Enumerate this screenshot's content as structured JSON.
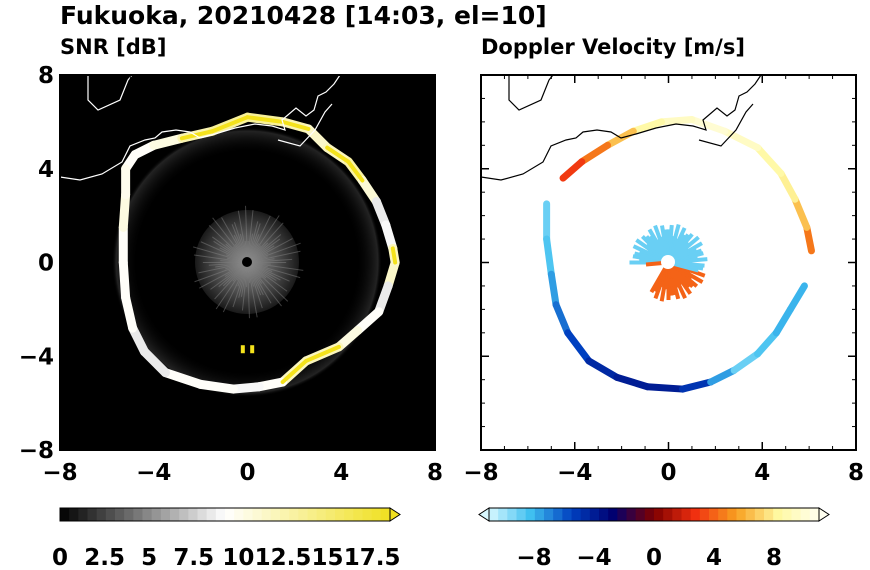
{
  "figure": {
    "title": "Fukuoka, 20210428 [14:03, el=10]"
  },
  "chart_data": [
    {
      "type": "heatmap",
      "panel_title": "SNR [dB]",
      "xlim": [
        -8,
        8
      ],
      "ylim": [
        -8,
        8
      ],
      "x_ticks": [
        "−8",
        "−4",
        "0",
        "4",
        "8"
      ],
      "y_ticks": [
        "8",
        "4",
        "0",
        "−4",
        "−8"
      ],
      "background": "#000000",
      "radar_site": [
        0,
        0
      ],
      "colorbar": {
        "min": 0,
        "max": 18.5,
        "tick_labels": [
          "0",
          "2.5",
          "5",
          "7.5",
          "10",
          "12.5",
          "15",
          "17.5"
        ],
        "tick_values": [
          0,
          2.5,
          5,
          7.5,
          10,
          12.5,
          15,
          17.5
        ],
        "colors": [
          "#000000",
          "#ffffff",
          "#f0e020"
        ],
        "extend": "max"
      },
      "ring_points": [
        {
          "x": -5.2,
          "y": 4.0,
          "v": 13
        },
        {
          "x": -4.8,
          "y": 4.6,
          "v": 14
        },
        {
          "x": -4.0,
          "y": 5.0,
          "v": 13
        },
        {
          "x": -2.8,
          "y": 5.3,
          "v": 16
        },
        {
          "x": -1.5,
          "y": 5.6,
          "v": 17
        },
        {
          "x": 0,
          "y": 6.2,
          "v": 18
        },
        {
          "x": 1.5,
          "y": 6.0,
          "v": 17
        },
        {
          "x": 2.6,
          "y": 5.7,
          "v": 16
        },
        {
          "x": 3.4,
          "y": 4.9,
          "v": 15
        },
        {
          "x": 4.3,
          "y": 4.3,
          "v": 17
        },
        {
          "x": 4.9,
          "y": 3.5,
          "v": 17
        },
        {
          "x": 5.5,
          "y": 2.6,
          "v": 13
        },
        {
          "x": 5.9,
          "y": 1.6,
          "v": 12
        },
        {
          "x": 6.2,
          "y": 0.6,
          "v": 14
        },
        {
          "x": 6.3,
          "y": 0.0,
          "v": 18
        },
        {
          "x": 6.0,
          "y": -1.0,
          "v": 13
        },
        {
          "x": 5.6,
          "y": -2.1,
          "v": 12
        },
        {
          "x": 4.7,
          "y": -2.9,
          "v": 15
        },
        {
          "x": 3.9,
          "y": -3.6,
          "v": 14
        },
        {
          "x": 2.5,
          "y": -4.2,
          "v": 18
        },
        {
          "x": 1.5,
          "y": -5.1,
          "v": 14
        },
        {
          "x": 0.5,
          "y": -5.3,
          "v": 13
        },
        {
          "x": -0.6,
          "y": -5.4,
          "v": 13
        },
        {
          "x": -2.0,
          "y": -5.2,
          "v": 14
        },
        {
          "x": -3.5,
          "y": -4.7,
          "v": 13
        },
        {
          "x": -4.4,
          "y": -3.8,
          "v": 12
        },
        {
          "x": -4.9,
          "y": -2.8,
          "v": 13
        },
        {
          "x": -5.2,
          "y": -1.5,
          "v": 14
        },
        {
          "x": -5.3,
          "y": 0.0,
          "v": 13
        },
        {
          "x": -5.3,
          "y": 1.5,
          "v": 14
        },
        {
          "x": -5.2,
          "y": 2.9,
          "v": 15
        }
      ],
      "center_echo_radius": 2.2,
      "small_echoes": [
        {
          "x": -0.2,
          "y": -3.7,
          "v": 17
        },
        {
          "x": 0.2,
          "y": -3.7,
          "v": 17
        }
      ]
    },
    {
      "type": "heatmap",
      "panel_title": "Doppler Velocity [m/s]",
      "xlim": [
        -8,
        8
      ],
      "ylim": [
        -8,
        8
      ],
      "x_ticks": [
        "−8",
        "−4",
        "0",
        "4",
        "8"
      ],
      "y_ticks": [
        "8",
        "4",
        "0",
        "−4",
        "−8"
      ],
      "background": "#ffffff",
      "colorbar": {
        "min": -11,
        "max": 11,
        "tick_labels": [
          "−8",
          "−4",
          "0",
          "4",
          "8"
        ],
        "tick_values": [
          -8,
          -4,
          0,
          4,
          8
        ],
        "colors": [
          "#d8f8ff",
          "#40c0f0",
          "#0040c0",
          "#000070",
          "#800000",
          "#f03010",
          "#f8a020",
          "#fff8a0",
          "#fffff0"
        ],
        "extend": "both"
      },
      "ring_points": [
        {
          "x": -5.2,
          "y": 2.5,
          "v": -9
        },
        {
          "x": -5.2,
          "y": 1.0,
          "v": -9
        },
        {
          "x": -5.0,
          "y": -0.5,
          "v": -8
        },
        {
          "x": -4.8,
          "y": -1.8,
          "v": -7
        },
        {
          "x": -4.3,
          "y": -3.0,
          "v": -6
        },
        {
          "x": -3.4,
          "y": -4.2,
          "v": -5
        },
        {
          "x": -2.2,
          "y": -4.9,
          "v": -4
        },
        {
          "x": -0.9,
          "y": -5.3,
          "v": -4
        },
        {
          "x": 0.6,
          "y": -5.4,
          "v": -4
        },
        {
          "x": 1.8,
          "y": -5.1,
          "v": -6
        },
        {
          "x": 2.8,
          "y": -4.6,
          "v": -9
        },
        {
          "x": 3.8,
          "y": -3.9,
          "v": -9
        },
        {
          "x": 4.6,
          "y": -3.0,
          "v": -8
        },
        {
          "x": 5.2,
          "y": -2.0,
          "v": -8
        },
        {
          "x": 5.8,
          "y": -1.0,
          "v": -8
        },
        {
          "x": 6.1,
          "y": 0.5,
          "v": 4
        },
        {
          "x": 5.9,
          "y": 1.5,
          "v": 5
        },
        {
          "x": 5.4,
          "y": 2.7,
          "v": 8
        },
        {
          "x": 4.8,
          "y": 3.8,
          "v": 8
        },
        {
          "x": 3.8,
          "y": 4.9,
          "v": 9
        },
        {
          "x": 2.4,
          "y": 5.6,
          "v": 10
        },
        {
          "x": 1.0,
          "y": 6.1,
          "v": 10
        },
        {
          "x": -0.3,
          "y": 6.0,
          "v": 9
        },
        {
          "x": -1.5,
          "y": 5.6,
          "v": 8
        },
        {
          "x": -2.6,
          "y": 5.0,
          "v": 5
        },
        {
          "x": -3.7,
          "y": 4.3,
          "v": 4
        },
        {
          "x": -4.5,
          "y": 3.6,
          "v": 2
        }
      ],
      "center_echo": {
        "radius": 1.6,
        "north_value": -9,
        "south_value": 4
      }
    }
  ]
}
